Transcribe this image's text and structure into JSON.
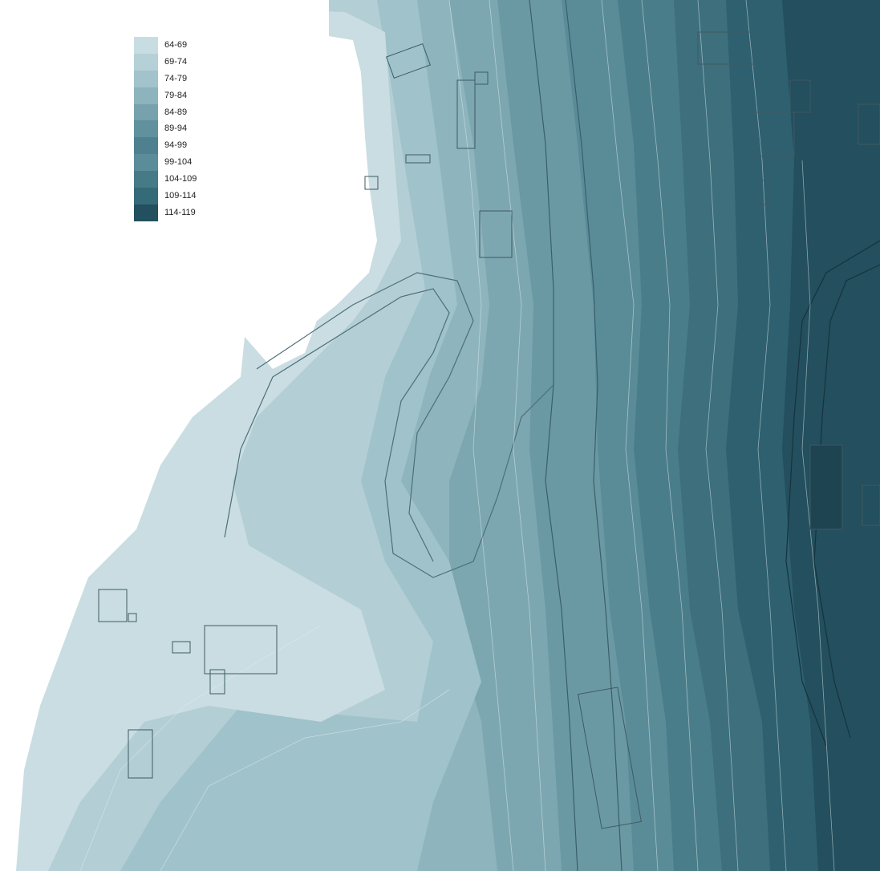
{
  "legend": {
    "items": [
      {
        "label": "64-69",
        "color": "#c8dde1"
      },
      {
        "label": "69-74",
        "color": "#b5d0d6"
      },
      {
        "label": "74-79",
        "color": "#a2c3cb"
      },
      {
        "label": "79-84",
        "color": "#8db3bd"
      },
      {
        "label": "84-89",
        "color": "#77a2ad"
      },
      {
        "label": "89-94",
        "color": "#62919e"
      },
      {
        "label": "94-99",
        "color": "#4f808f"
      },
      {
        "label": "99-104",
        "color": "#5a8d99"
      },
      {
        "label": "104-109",
        "color": "#467a87"
      },
      {
        "label": "109-114",
        "color": "#356a78"
      },
      {
        "label": "114-119",
        "color": "#234f5e"
      }
    ]
  }
}
